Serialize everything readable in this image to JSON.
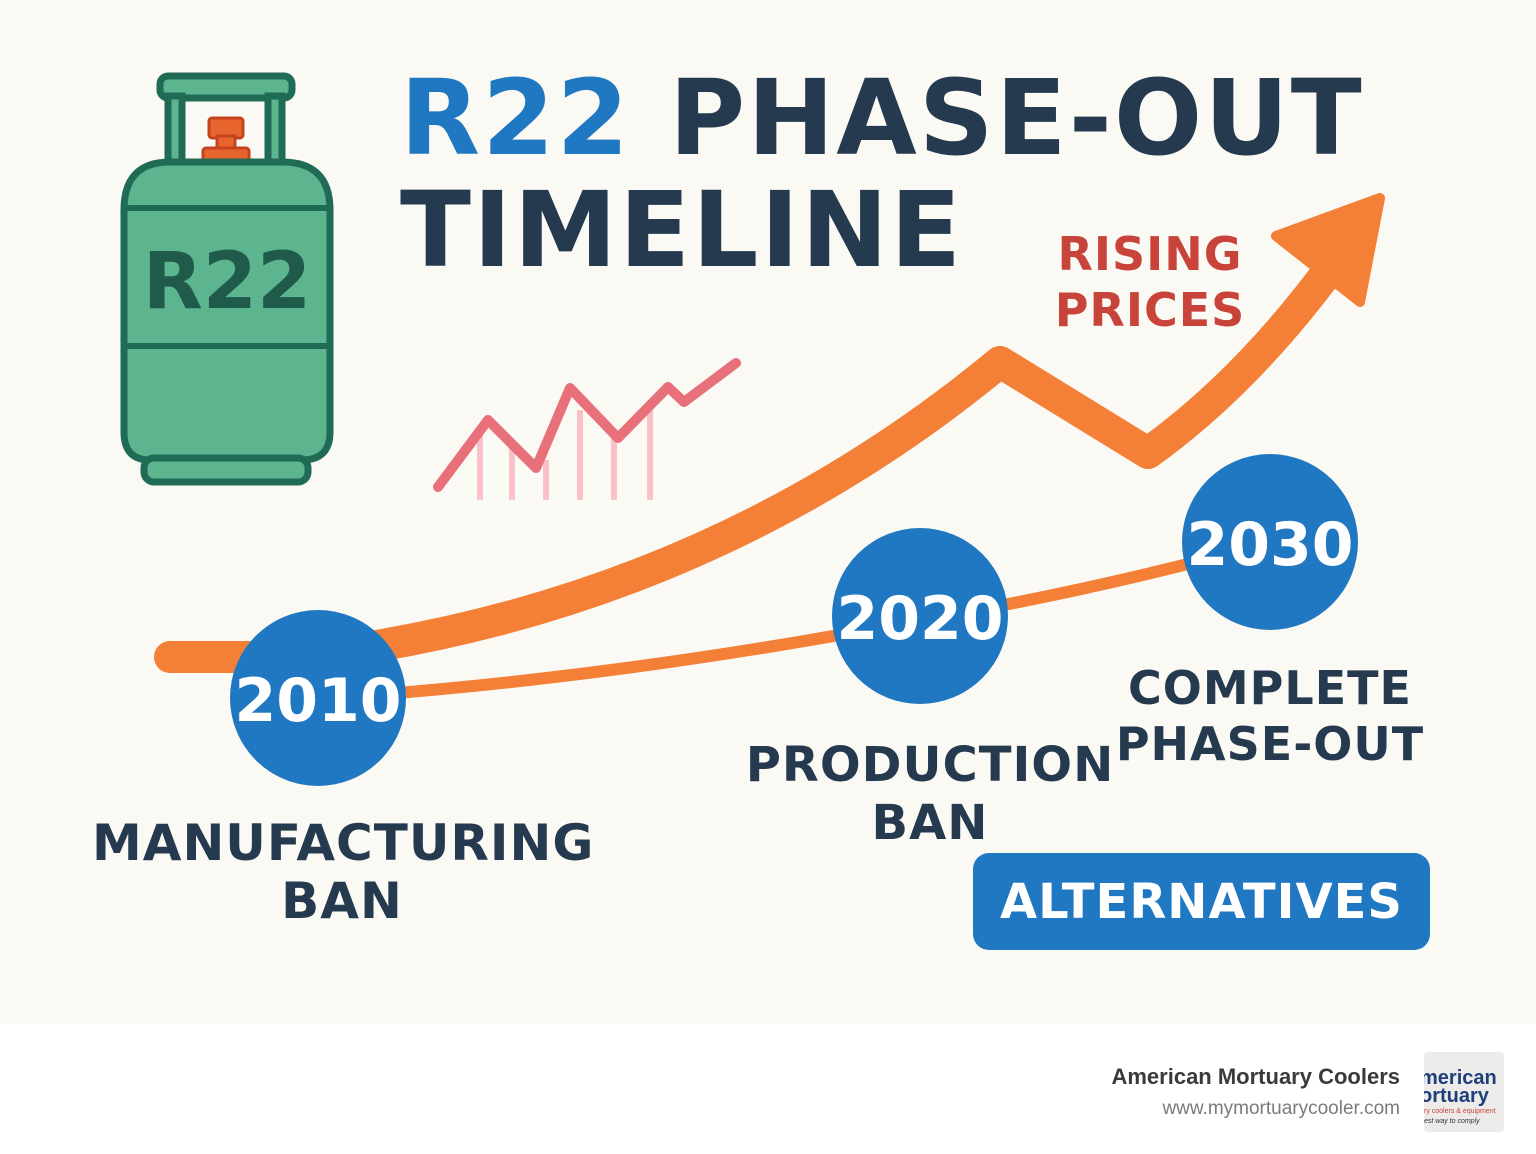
{
  "title": {
    "accent": "R22",
    "rest_line1": "PHASE-OUT",
    "line2": "TIMELINE"
  },
  "cylinder": {
    "label": "R22"
  },
  "price_trend": {
    "label_line1": "RISING",
    "label_line2": "PRICES"
  },
  "milestones": [
    {
      "year": "2010",
      "label_line1": "MANUFACTURING",
      "label_line2": "BAN"
    },
    {
      "year": "2020",
      "label_line1": "PRODUCTION",
      "label_line2": "BAN"
    },
    {
      "year": "2030",
      "label_line1": "COMPLETE",
      "label_line2": "PHASE-OUT"
    }
  ],
  "alternatives_button": {
    "label": "ALTERNATIVES"
  },
  "footer": {
    "company": "American Mortuary Coolers",
    "url": "www.mymortuarycooler.com",
    "logo_text_line1": "merican",
    "logo_text_line2": "ortuary",
    "logo_text_line3": "ry coolers & equipment",
    "logo_text_line4": "est way to comply"
  },
  "colors": {
    "background": "#fbf9f4",
    "navy": "#253a4f",
    "blue": "#1f78c1",
    "orange": "#f47f36",
    "red": "#c8433a",
    "cylinder_green": "#5cb58e",
    "cylinder_outline": "#1f6b55",
    "pink": "#e8707a"
  }
}
